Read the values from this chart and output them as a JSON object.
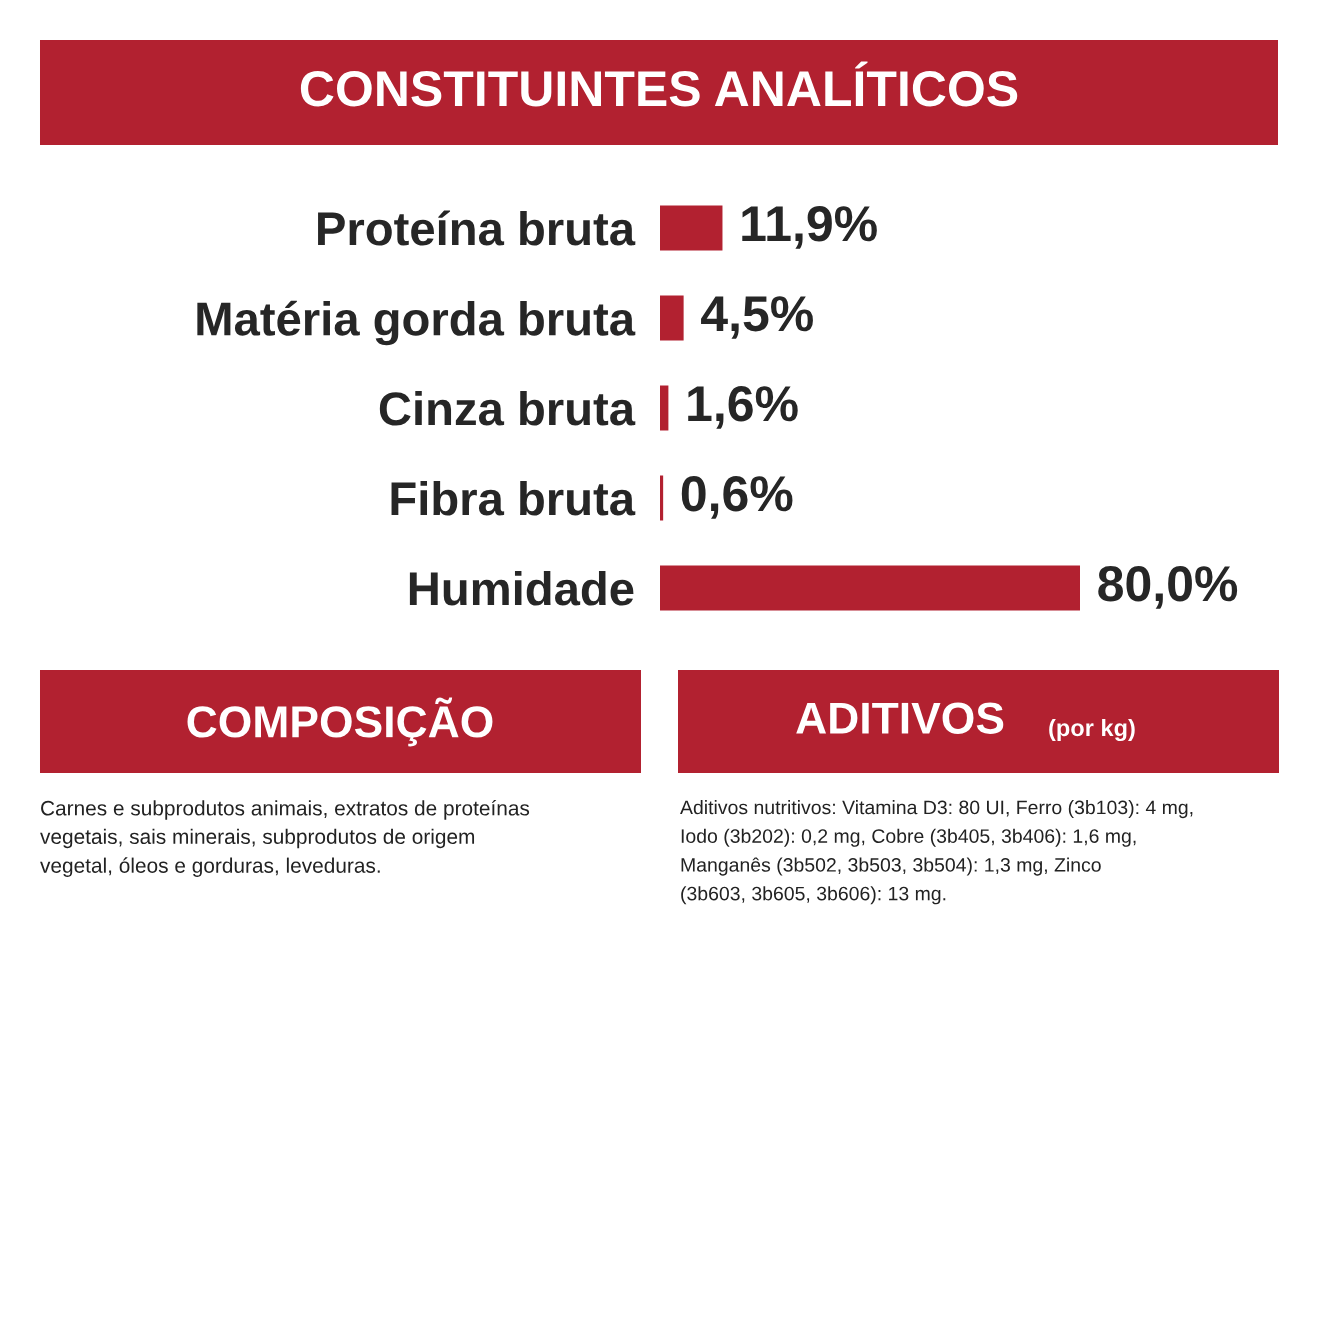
{
  "chart_data": {
    "type": "bar",
    "orientation": "horizontal",
    "title": "CONSTITUINTES ANALÍTICOS",
    "categories": [
      "Proteína bruta",
      "Matéria gorda bruta",
      "Cinza bruta",
      "Fibra bruta",
      "Humidade"
    ],
    "values": [
      11.9,
      4.5,
      1.6,
      0.6,
      80.0
    ],
    "value_labels": [
      "11,9%",
      "4,5%",
      "1,6%",
      "0,6%",
      "80,0%"
    ],
    "color": "#b22130",
    "grid": false,
    "legend": false,
    "annotations": [
      "COMPOSIÇÃO",
      "Carnes e subprodutos animais, extratos de proteínas\nvegetais, sais minerais, subprodutos de origem\nvegetal, óleos e gorduras, leveduras.",
      "ADITIVOS",
      "(por kg)",
      "Aditivos nutritivos: Vitamina D3: 80 UI, Ferro (3b103): 4 mg,\nIodo (3b202): 0,2 mg, Cobre (3b405, 3b406): 1,6 mg,\nManganês (3b502, 3b503, 3b504): 1,3 mg, Zinco\n(3b603, 3b605, 3b606): 13 mg."
    ]
  }
}
